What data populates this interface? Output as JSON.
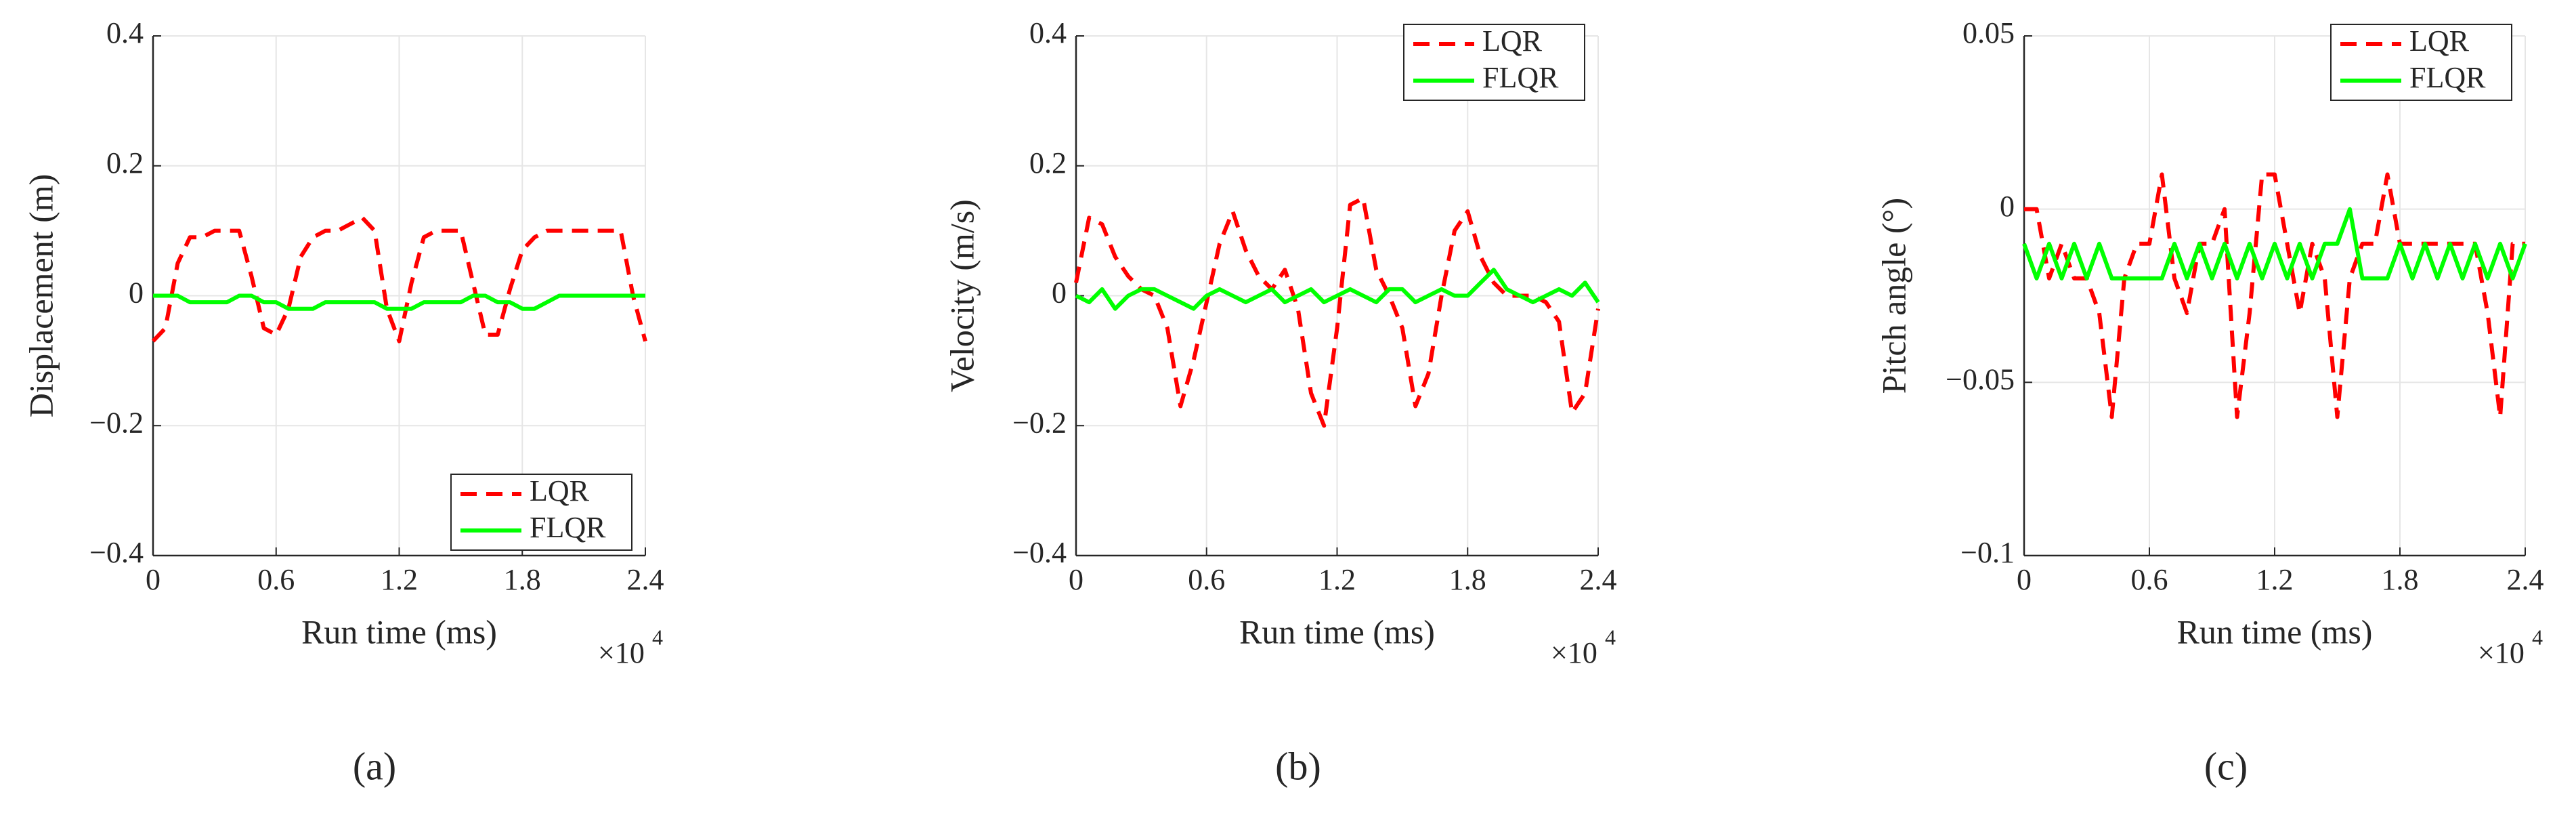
{
  "chart_data": [
    {
      "type": "line",
      "caption": "(a)",
      "x_label": "Run time (ms)",
      "y_label": "Displacement (m)",
      "x_multiplier": "×10",
      "x_exponent": "4",
      "x": [
        0,
        600,
        1200,
        1800,
        2400,
        3000,
        3600,
        4200,
        4800,
        5400,
        6000,
        6600,
        7200,
        7800,
        8400,
        9000,
        9600,
        10200,
        10800,
        11400,
        12000,
        12600,
        13200,
        13800,
        14400,
        15000,
        15600,
        16200,
        16800,
        17400,
        18000,
        18600,
        19200,
        19800,
        20400,
        21000,
        21600,
        22200,
        22800,
        23400,
        24000
      ],
      "series": [
        {
          "name": "LQR",
          "color": "#ff0000",
          "dashed": true,
          "values": [
            -0.07,
            -0.05,
            0.05,
            0.09,
            0.09,
            0.1,
            0.1,
            0.1,
            0.03,
            -0.05,
            -0.06,
            -0.02,
            0.06,
            0.09,
            0.1,
            0.1,
            0.11,
            0.12,
            0.1,
            -0.02,
            -0.07,
            0.02,
            0.09,
            0.1,
            0.1,
            0.1,
            0.02,
            -0.06,
            -0.06,
            0.01,
            0.07,
            0.09,
            0.1,
            0.1,
            0.1,
            0.1,
            0.1,
            0.1,
            0.1,
            0,
            -0.07
          ]
        },
        {
          "name": "FLQR",
          "color": "#00ff00",
          "dashed": false,
          "values": [
            0,
            0,
            0,
            -0.01,
            -0.01,
            -0.01,
            -0.01,
            0,
            0,
            -0.01,
            -0.01,
            -0.02,
            -0.02,
            -0.02,
            -0.01,
            -0.01,
            -0.01,
            -0.01,
            -0.01,
            -0.02,
            -0.02,
            -0.02,
            -0.01,
            -0.01,
            -0.01,
            -0.01,
            0,
            0,
            -0.01,
            -0.01,
            -0.02,
            -0.02,
            -0.01,
            0,
            0,
            0,
            0,
            0,
            0,
            0,
            0
          ]
        }
      ],
      "xlim": [
        0,
        24000
      ],
      "xticks": [
        0,
        {
          "value": 6000,
          "label": "0.6"
        },
        {
          "value": 12000,
          "label": "1.2"
        },
        {
          "value": 18000,
          "label": "1.8"
        },
        {
          "value": 24000,
          "label": "2.4"
        }
      ],
      "ylim": [
        -0.4,
        0.4
      ],
      "yticks": [
        {
          "value": -0.4,
          "label": "−0.4"
        },
        {
          "value": -0.2,
          "label": "−0.2"
        },
        0,
        {
          "value": 0.2,
          "label": "0.2"
        },
        {
          "value": 0.4,
          "label": "0.4"
        }
      ],
      "grid": true,
      "legend": "lower-right"
    },
    {
      "type": "line",
      "caption": "(b)",
      "x_label": "Run time (ms)",
      "y_label": "Velocity (m/s)",
      "x_multiplier": "×10",
      "x_exponent": "4",
      "x": [
        0,
        600,
        1200,
        1800,
        2400,
        3000,
        3600,
        4200,
        4800,
        5400,
        6000,
        6600,
        7200,
        7800,
        8400,
        9000,
        9600,
        10200,
        10800,
        11400,
        12000,
        12600,
        13200,
        13800,
        14400,
        15000,
        15600,
        16200,
        16800,
        17400,
        18000,
        18600,
        19200,
        19800,
        20400,
        21000,
        21600,
        22200,
        22800,
        23400,
        24000
      ],
      "series": [
        {
          "name": "LQR",
          "color": "#ff0000",
          "dashed": true,
          "values": [
            0.02,
            0.12,
            0.11,
            0.06,
            0.03,
            0.01,
            0,
            -0.05,
            -0.17,
            -0.1,
            -0.01,
            0.08,
            0.13,
            0.07,
            0.03,
            0.01,
            0.04,
            -0.02,
            -0.15,
            -0.2,
            -0.05,
            0.14,
            0.15,
            0.04,
            0,
            -0.05,
            -0.17,
            -0.12,
            0,
            0.1,
            0.13,
            0.06,
            0.02,
            0,
            0,
            0,
            -0.01,
            -0.04,
            -0.18,
            -0.15,
            -0.02
          ]
        },
        {
          "name": "FLQR",
          "color": "#00ff00",
          "dashed": false,
          "values": [
            0,
            -0.01,
            0.01,
            -0.02,
            0,
            0.01,
            0.01,
            0,
            -0.01,
            -0.02,
            0,
            0.01,
            0,
            -0.01,
            0,
            0.01,
            -0.01,
            0,
            0.01,
            -0.01,
            0,
            0.01,
            0,
            -0.01,
            0.01,
            0.01,
            -0.01,
            0,
            0.01,
            0,
            0,
            0.02,
            0.04,
            0.01,
            0,
            -0.01,
            0,
            0.01,
            0,
            0.02,
            -0.01
          ]
        }
      ],
      "xlim": [
        0,
        24000
      ],
      "xticks": [
        0,
        {
          "value": 6000,
          "label": "0.6"
        },
        {
          "value": 12000,
          "label": "1.2"
        },
        {
          "value": 18000,
          "label": "1.8"
        },
        {
          "value": 24000,
          "label": "2.4"
        }
      ],
      "ylim": [
        -0.4,
        0.4
      ],
      "yticks": [
        {
          "value": -0.4,
          "label": "−0.4"
        },
        {
          "value": -0.2,
          "label": "−0.2"
        },
        0,
        {
          "value": 0.2,
          "label": "0.2"
        },
        {
          "value": 0.4,
          "label": "0.4"
        }
      ],
      "grid": true,
      "legend": "upper-right"
    },
    {
      "type": "line",
      "caption": "(c)",
      "x_label": "Run time (ms)",
      "y_label": "Pitch angle (°)",
      "x_multiplier": "×10",
      "x_exponent": "4",
      "x": [
        0,
        600,
        1200,
        1800,
        2400,
        3000,
        3600,
        4200,
        4800,
        5400,
        6000,
        6600,
        7200,
        7800,
        8400,
        9000,
        9600,
        10200,
        10800,
        11400,
        12000,
        12600,
        13200,
        13800,
        14400,
        15000,
        15600,
        16200,
        16800,
        17400,
        18000,
        18600,
        19200,
        19800,
        20400,
        21000,
        21600,
        22200,
        22800,
        23400,
        24000
      ],
      "series": [
        {
          "name": "LQR",
          "color": "#ff0000",
          "dashed": true,
          "values": [
            0,
            0,
            -0.02,
            -0.01,
            -0.02,
            -0.02,
            -0.03,
            -0.06,
            -0.02,
            -0.01,
            -0.01,
            0.01,
            -0.02,
            -0.03,
            -0.01,
            -0.01,
            0,
            -0.06,
            -0.03,
            0.01,
            0.01,
            -0.01,
            -0.03,
            -0.01,
            -0.02,
            -0.06,
            -0.02,
            -0.01,
            -0.01,
            0.01,
            -0.01,
            -0.01,
            -0.01,
            -0.01,
            -0.01,
            -0.01,
            -0.01,
            -0.03,
            -0.06,
            -0.01,
            -0.01
          ]
        },
        {
          "name": "FLQR",
          "color": "#00ff00",
          "dashed": false,
          "values": [
            -0.01,
            -0.02,
            -0.01,
            -0.02,
            -0.01,
            -0.02,
            -0.01,
            -0.02,
            -0.02,
            -0.02,
            -0.02,
            -0.02,
            -0.01,
            -0.02,
            -0.01,
            -0.02,
            -0.01,
            -0.02,
            -0.01,
            -0.02,
            -0.01,
            -0.02,
            -0.01,
            -0.02,
            -0.01,
            -0.01,
            0,
            -0.02,
            -0.02,
            -0.02,
            -0.01,
            -0.02,
            -0.01,
            -0.02,
            -0.01,
            -0.02,
            -0.01,
            -0.02,
            -0.01,
            -0.02,
            -0.01
          ]
        }
      ],
      "xlim": [
        0,
        24000
      ],
      "xticks": [
        0,
        {
          "value": 6000,
          "label": "0.6"
        },
        {
          "value": 12000,
          "label": "1.2"
        },
        {
          "value": 18000,
          "label": "1.8"
        },
        {
          "value": 24000,
          "label": "2.4"
        }
      ],
      "ylim": [
        -0.1,
        0.05
      ],
      "yticks": [
        {
          "value": -0.1,
          "label": "−0.1"
        },
        {
          "value": -0.05,
          "label": "−0.05"
        },
        0,
        {
          "value": 0.05,
          "label": "0.05"
        }
      ],
      "grid": true,
      "legend": "upper-right"
    }
  ]
}
